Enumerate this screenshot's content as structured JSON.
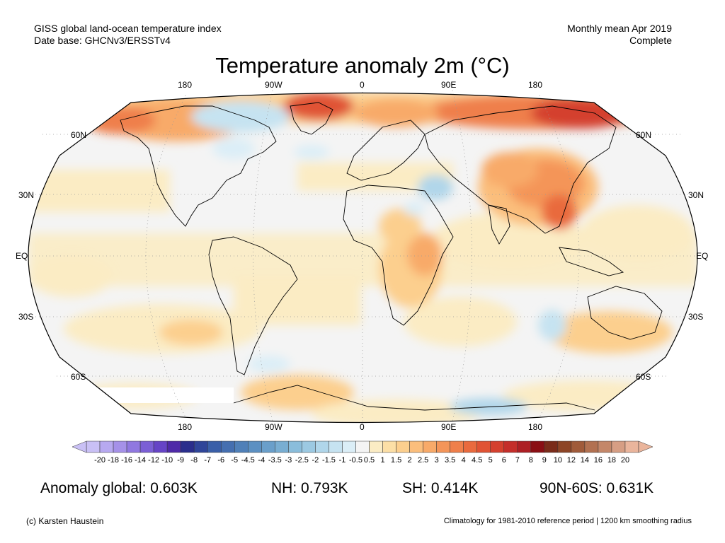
{
  "header": {
    "left_line1": "GISS global land-ocean temperature index",
    "left_line2": "Date base: GHCNv3/ERSSTv4",
    "right_line1": "Monthly mean Apr 2019",
    "right_line2": "Complete"
  },
  "title": "Temperature anomaly 2m (°C)",
  "map": {
    "projection": "Robinson",
    "lon_labels_top": [
      "180",
      "90W",
      "0",
      "90E",
      "180"
    ],
    "lon_labels_bottom": [
      "180",
      "90W",
      "0",
      "90E",
      "180"
    ],
    "lat_labels_left": [
      "60N",
      "30N",
      "EQ",
      "30S",
      "60S"
    ],
    "lat_labels_right": [
      "60N",
      "30N",
      "EQ",
      "30S",
      "60S"
    ],
    "ocean_color": "#f4f4f4",
    "land_outline_color": "#000000"
  },
  "colorbar": {
    "ticks": [
      "-20",
      "-18",
      "-16",
      "-14",
      "-12",
      "-10",
      "-9",
      "-8",
      "-7",
      "-6",
      "-5",
      "-4.5",
      "-4",
      "-3.5",
      "-3",
      "-2.5",
      "-2",
      "-1.5",
      "-1",
      "-0.5",
      "0.5",
      "1",
      "1.5",
      "2",
      "2.5",
      "3",
      "3.5",
      "4",
      "4.5",
      "5",
      "6",
      "7",
      "8",
      "9",
      "10",
      "12",
      "14",
      "16",
      "18",
      "20"
    ],
    "colors": [
      "#c9c0f5",
      "#b7a9f0",
      "#a591e8",
      "#9078e0",
      "#7b5fd5",
      "#6644c6",
      "#4f2aa8",
      "#2a2e8c",
      "#2f4599",
      "#3a5fa8",
      "#456fb0",
      "#5080b8",
      "#5c90c2",
      "#6a9fca",
      "#79aed2",
      "#8abddb",
      "#9cc9e2",
      "#b0d6ea",
      "#c6e3f1",
      "#dbeef7",
      "#f4f4f4",
      "#fbecc4",
      "#fcdfa6",
      "#fccf8e",
      "#fbbe7c",
      "#f8aa69",
      "#f49559",
      "#ef7f4b",
      "#e96a3e",
      "#e05334",
      "#d4402e",
      "#c42e2a",
      "#ad1f24",
      "#8a0f14",
      "#7a2c1a",
      "#8d4526",
      "#a05b3a",
      "#b27151",
      "#c48769",
      "#d69e84",
      "#eab59c"
    ]
  },
  "stats": {
    "global": "Anomaly global: 0.603K",
    "nh": "NH: 0.793K",
    "sh": "SH: 0.414K",
    "arctic": "90N-60S: 0.631K"
  },
  "footer": {
    "credit": "(c) Karsten Haustein",
    "note": "Climatology for 1981-2010 reference period | 1200 km smoothing radius"
  }
}
